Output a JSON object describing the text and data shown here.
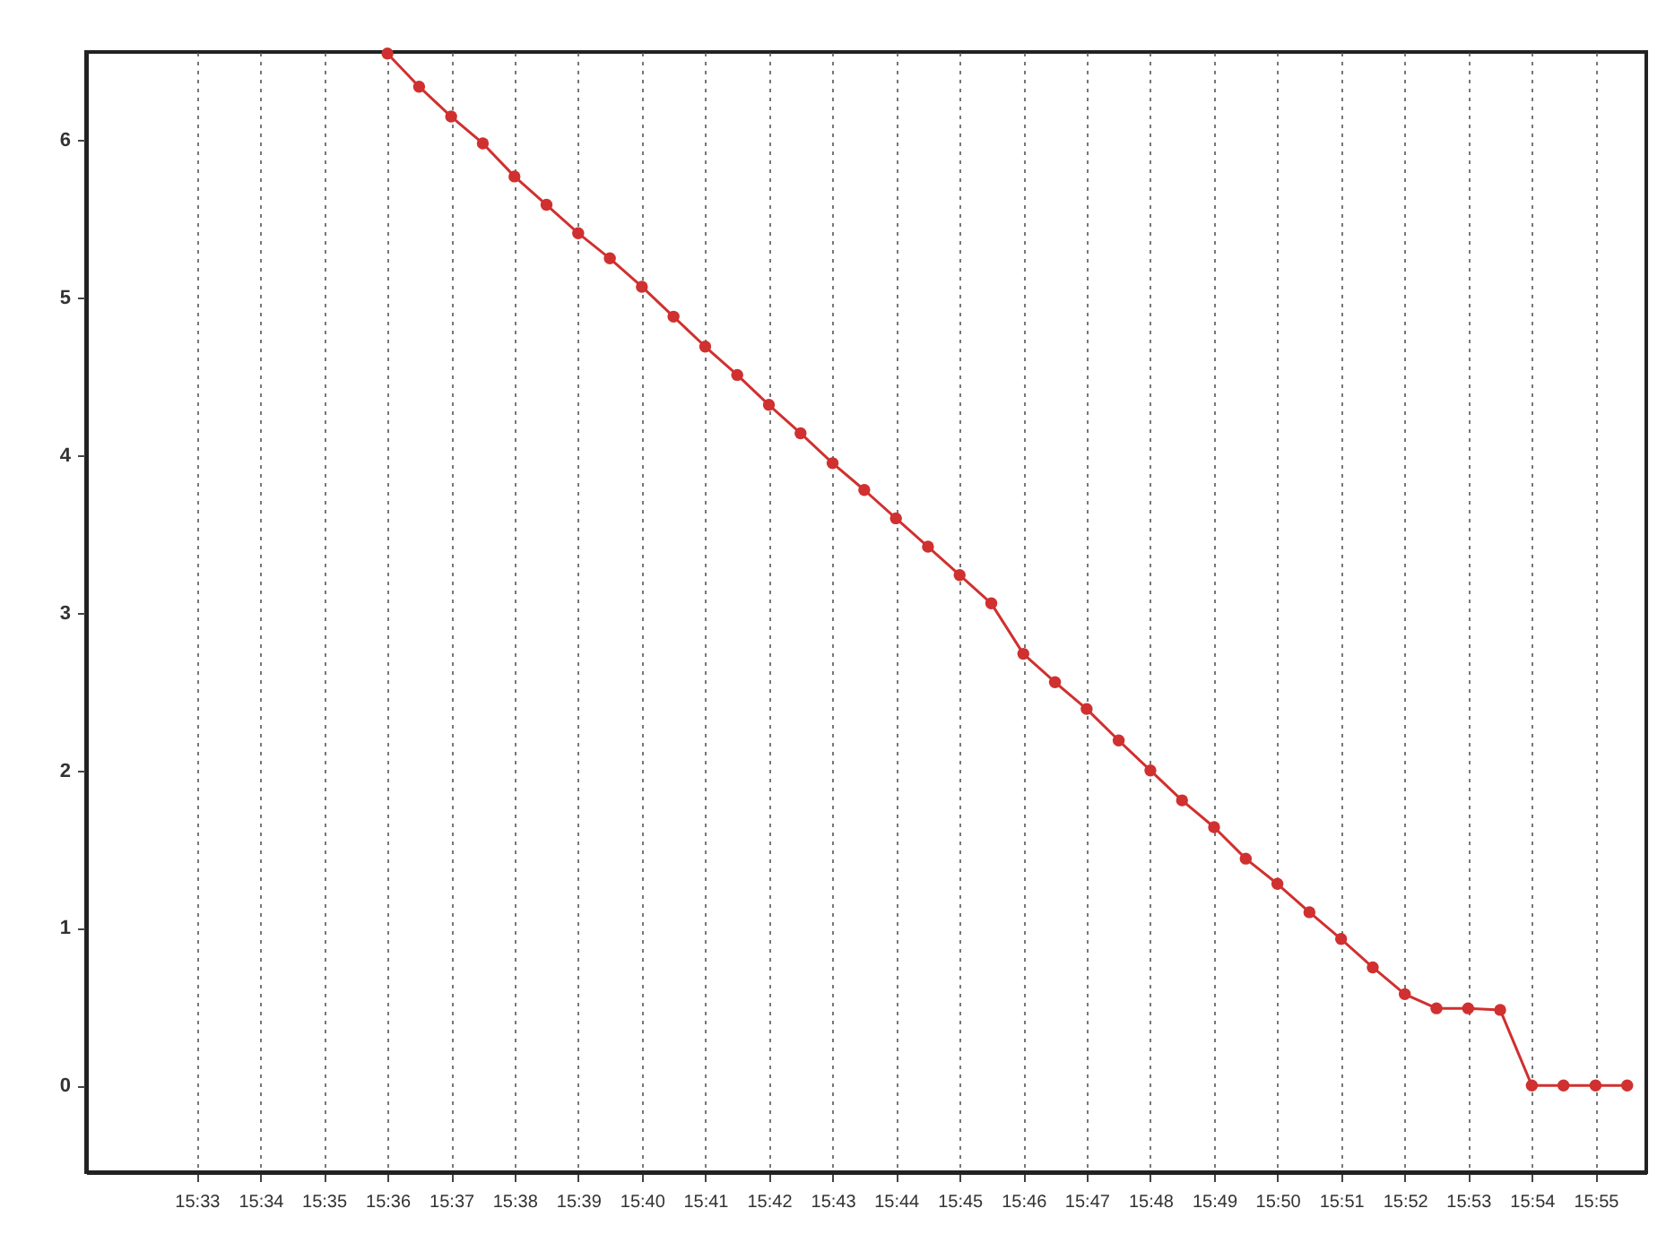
{
  "chart_data": {
    "type": "line",
    "x": [
      15.6,
      15.6083,
      15.6167,
      15.625,
      15.6333,
      15.6417,
      15.65,
      15.6583,
      15.6667,
      15.675,
      15.6833,
      15.6917,
      15.7,
      15.7083,
      15.7167,
      15.725,
      15.7333,
      15.7417,
      15.75,
      15.7583,
      15.7667,
      15.775,
      15.7833,
      15.7917,
      15.8,
      15.8083,
      15.8167,
      15.825,
      15.8333,
      15.8417,
      15.85,
      15.8583,
      15.8667,
      15.875,
      15.8833,
      15.8917,
      15.9,
      15.9083,
      15.9167,
      15.925
    ],
    "series": [
      {
        "color": "#d0302f",
        "values": [
          6.55,
          6.34,
          6.15,
          5.98,
          5.77,
          5.59,
          5.41,
          5.25,
          5.07,
          4.88,
          4.69,
          4.51,
          4.32,
          4.14,
          3.95,
          3.78,
          3.6,
          3.42,
          3.24,
          3.06,
          2.74,
          2.56,
          2.39,
          2.19,
          2.0,
          1.81,
          1.64,
          1.44,
          1.28,
          1.1,
          0.93,
          0.75,
          0.58,
          0.49,
          0.49,
          0.48,
          0,
          0,
          0,
          0
        ]
      }
    ],
    "xlim": [
      15.521,
      15.93
    ],
    "xticks": [
      {
        "value": 15.55,
        "label": "15:33"
      },
      {
        "value": 15.5667,
        "label": "15:34"
      },
      {
        "value": 15.5833,
        "label": "15:35"
      },
      {
        "value": 15.6,
        "label": "15:36"
      },
      {
        "value": 15.6167,
        "label": "15:37"
      },
      {
        "value": 15.6333,
        "label": "15:38"
      },
      {
        "value": 15.65,
        "label": "15:39"
      },
      {
        "value": 15.6667,
        "label": "15:40"
      },
      {
        "value": 15.6833,
        "label": "15:41"
      },
      {
        "value": 15.7,
        "label": "15:42"
      },
      {
        "value": 15.7167,
        "label": "15:43"
      },
      {
        "value": 15.7333,
        "label": "15:44"
      },
      {
        "value": 15.75,
        "label": "15:45"
      },
      {
        "value": 15.7667,
        "label": "15:46"
      },
      {
        "value": 15.7833,
        "label": "15:47"
      },
      {
        "value": 15.8,
        "label": "15:48"
      },
      {
        "value": 15.8167,
        "label": "15:49"
      },
      {
        "value": 15.8333,
        "label": "15:50"
      },
      {
        "value": 15.85,
        "label": "15:51"
      },
      {
        "value": 15.8667,
        "label": "15:52"
      },
      {
        "value": 15.8833,
        "label": "15:53"
      },
      {
        "value": 15.9,
        "label": "15:54"
      },
      {
        "value": 15.9167,
        "label": "15:55"
      }
    ],
    "ylim": [
      -0.55,
      6.56
    ],
    "yticks": [
      0,
      1,
      2,
      3,
      4,
      5,
      6
    ],
    "grid": "x",
    "marker": "circle",
    "line_style": "solid"
  }
}
